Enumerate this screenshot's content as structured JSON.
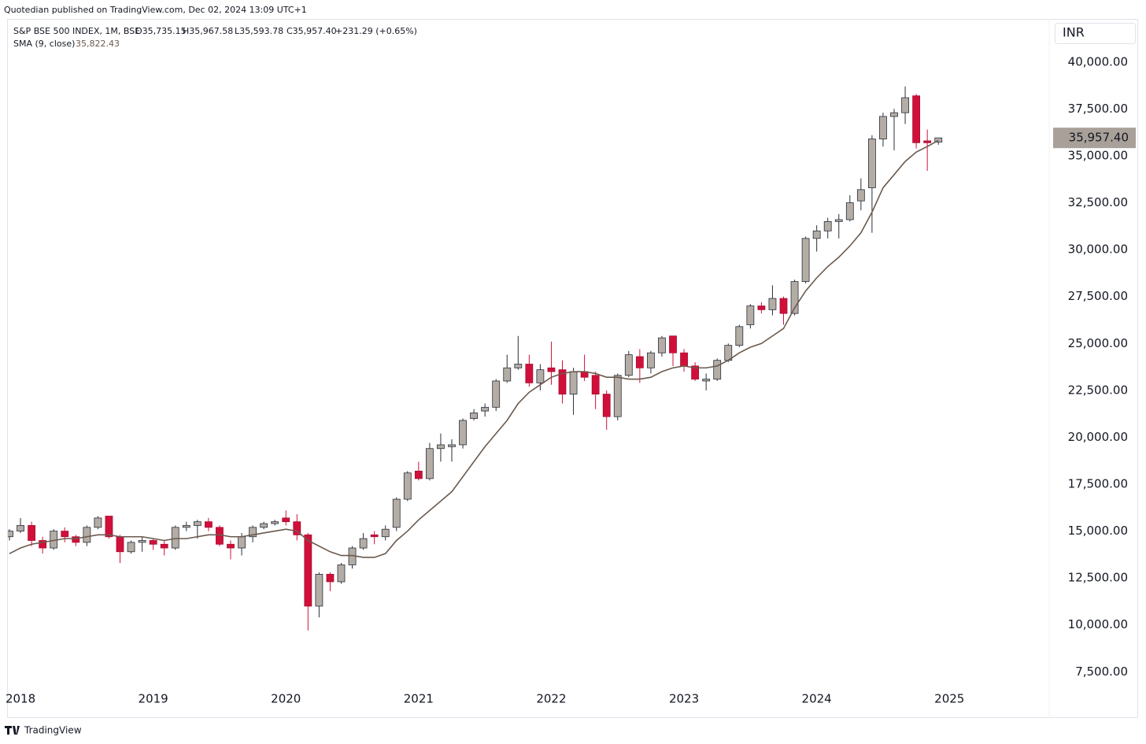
{
  "header": {
    "publisher": "Quotedian published on TradingView.com, Dec 02, 2024 13:09 UTC+1",
    "footer": "TradingView"
  },
  "chart_data": {
    "type": "candlestick",
    "legend": {
      "symbol": "S&P BSE 500 INDEX, 1M, BSE",
      "open": "O35,735.15",
      "high": "H35,967.58",
      "low": "L35,593.78",
      "close": "C35,957.40",
      "change": "+231.29 (+0.65%)"
    },
    "currency": "INR",
    "last_close_label": "35,957.40",
    "up_color": "#b4ada6",
    "down_color": "#d0103a",
    "grid": false,
    "categories": [
      null,
      "2018",
      null,
      null,
      null,
      null,
      null,
      null,
      null,
      null,
      null,
      null,
      null,
      "2019",
      null,
      null,
      null,
      null,
      null,
      null,
      null,
      null,
      null,
      null,
      null,
      "2020",
      null,
      null,
      null,
      null,
      null,
      null,
      null,
      null,
      null,
      null,
      null,
      "2021",
      null,
      null,
      null,
      null,
      null,
      null,
      null,
      null,
      null,
      null,
      null,
      "2022",
      null,
      null,
      null,
      null,
      null,
      null,
      null,
      null,
      null,
      null,
      null,
      "2023",
      null,
      null,
      null,
      null,
      null,
      null,
      null,
      null,
      null,
      null,
      null,
      "2024",
      null,
      null,
      null,
      null,
      null,
      null,
      null,
      null,
      null,
      null,
      null,
      "2025"
    ],
    "open": [
      14700,
      15000,
      15300,
      14500,
      14100,
      15000,
      14700,
      14400,
      15200,
      15800,
      14700,
      13900,
      14400,
      14500,
      14300,
      14100,
      15200,
      15300,
      15500,
      15200,
      14300,
      14100,
      14700,
      15200,
      15400,
      15700,
      15500,
      14800,
      11000,
      12700,
      12300,
      13200,
      14100,
      14800,
      14700,
      15200,
      16700,
      18200,
      17800,
      19400,
      19500,
      19600,
      21000,
      21400,
      21600,
      23000,
      23700,
      23900,
      22900,
      23700,
      23600,
      22300,
      23500,
      23300,
      22300,
      21100,
      23300,
      24300,
      23700,
      24500,
      25400,
      24500,
      23800,
      23000,
      23100,
      24100,
      24900,
      26000,
      27000,
      26800,
      27400,
      26600,
      28300,
      30600,
      31000,
      31500,
      31600,
      32600,
      33300,
      35900,
      37100,
      37300,
      38200,
      35800,
      35735.15,
      null
    ],
    "high": [
      15100,
      15700,
      15500,
      14700,
      15100,
      15200,
      14800,
      15300,
      15800,
      15800,
      14800,
      14500,
      14700,
      14600,
      14500,
      15300,
      15500,
      15600,
      15700,
      15300,
      14500,
      14900,
      15300,
      15500,
      15600,
      16100,
      15900,
      14900,
      12800,
      12800,
      13300,
      14200,
      14900,
      15000,
      15300,
      16800,
      18200,
      18700,
      19700,
      20200,
      19900,
      21000,
      21500,
      21800,
      23100,
      24400,
      25400,
      24400,
      23900,
      25100,
      24100,
      23700,
      24400,
      23500,
      22500,
      23400,
      24600,
      24700,
      24600,
      25400,
      25400,
      24700,
      24000,
      23400,
      24200,
      25000,
      26000,
      27100,
      27200,
      28100,
      27500,
      28400,
      30700,
      31300,
      31700,
      31900,
      32900,
      33800,
      36100,
      37300,
      37500,
      38700,
      38300,
      36400,
      35967.58,
      null
    ],
    "low": [
      14500,
      14900,
      14200,
      13800,
      14000,
      14400,
      14200,
      14200,
      15100,
      14600,
      13300,
      13800,
      13900,
      14000,
      13700,
      14000,
      15000,
      14600,
      15000,
      14200,
      13500,
      13700,
      14400,
      15100,
      15300,
      15300,
      14500,
      9700,
      10400,
      11800,
      12200,
      13000,
      14000,
      14300,
      14500,
      15000,
      16600,
      17700,
      17700,
      18700,
      18700,
      19400,
      20900,
      21100,
      21400,
      22900,
      23600,
      22700,
      22500,
      22800,
      21800,
      21200,
      23000,
      21500,
      20400,
      20900,
      23200,
      22900,
      23400,
      24300,
      23800,
      23500,
      23000,
      22500,
      23000,
      24000,
      24800,
      25800,
      26600,
      26500,
      26000,
      26500,
      28200,
      29900,
      30600,
      30600,
      31500,
      32100,
      30900,
      35500,
      35300,
      36700,
      35400,
      34200,
      35593.78,
      null
    ],
    "close": [
      15000,
      15300,
      14500,
      14100,
      15000,
      14700,
      14400,
      15200,
      15700,
      14700,
      13900,
      14400,
      14500,
      14300,
      14100,
      15200,
      15300,
      15500,
      15200,
      14300,
      14100,
      14700,
      15200,
      15400,
      15500,
      15500,
      14800,
      11000,
      12700,
      12300,
      13200,
      14100,
      14600,
      14700,
      15100,
      16700,
      18100,
      17800,
      19400,
      19600,
      19600,
      20900,
      21300,
      21600,
      23000,
      23700,
      23900,
      22900,
      23600,
      23500,
      22300,
      23500,
      23200,
      22300,
      21100,
      23300,
      24400,
      23700,
      24500,
      25300,
      24500,
      23800,
      23100,
      23100,
      24100,
      24900,
      25900,
      27000,
      26800,
      27400,
      26600,
      28300,
      30600,
      31000,
      31500,
      31600,
      32500,
      33200,
      35900,
      37100,
      37300,
      38100,
      35700,
      35700,
      35957.4,
      null
    ],
    "sma": {
      "name": "SMA (9, close)",
      "value_label": "35,822.43",
      "color": "#6b5a4e",
      "values": [
        13800,
        14100,
        14300,
        14400,
        14500,
        14600,
        14600,
        14700,
        14800,
        14800,
        14700,
        14700,
        14700,
        14600,
        14500,
        14600,
        14600,
        14700,
        14800,
        14800,
        14700,
        14700,
        14800,
        14900,
        15000,
        15100,
        15000,
        14500,
        14200,
        13900,
        13700,
        13700,
        13600,
        13600,
        13800,
        14500,
        15000,
        15600,
        16100,
        16600,
        17100,
        17900,
        18700,
        19500,
        20200,
        20900,
        21800,
        22400,
        22800,
        23200,
        23400,
        23500,
        23500,
        23400,
        23200,
        23200,
        23100,
        23100,
        23200,
        23500,
        23700,
        23800,
        23700,
        23700,
        23800,
        24100,
        24500,
        24800,
        25000,
        25400,
        25800,
        26900,
        27800,
        28500,
        29100,
        29600,
        30200,
        30900,
        32000,
        33300,
        34000,
        34700,
        35200,
        35500,
        35822.43,
        null
      ]
    },
    "ylim": [
      6800,
      42300
    ],
    "yticks": [
      {
        "value": 7500,
        "label": "7,500.00"
      },
      {
        "value": 10000,
        "label": "10,000.00"
      },
      {
        "value": 12500,
        "label": "12,500.00"
      },
      {
        "value": 15000,
        "label": "15,000.00"
      },
      {
        "value": 17500,
        "label": "17,500.00"
      },
      {
        "value": 20000,
        "label": "20,000.00"
      },
      {
        "value": 22500,
        "label": "22,500.00"
      },
      {
        "value": 25000,
        "label": "25,000.00"
      },
      {
        "value": 27500,
        "label": "27,500.00"
      },
      {
        "value": 30000,
        "label": "30,000.00"
      },
      {
        "value": 32500,
        "label": "32,500.00"
      },
      {
        "value": 35000,
        "label": "35,000.00"
      },
      {
        "value": 37500,
        "label": "37,500.00"
      },
      {
        "value": 40000,
        "label": "40,000.00"
      }
    ]
  }
}
